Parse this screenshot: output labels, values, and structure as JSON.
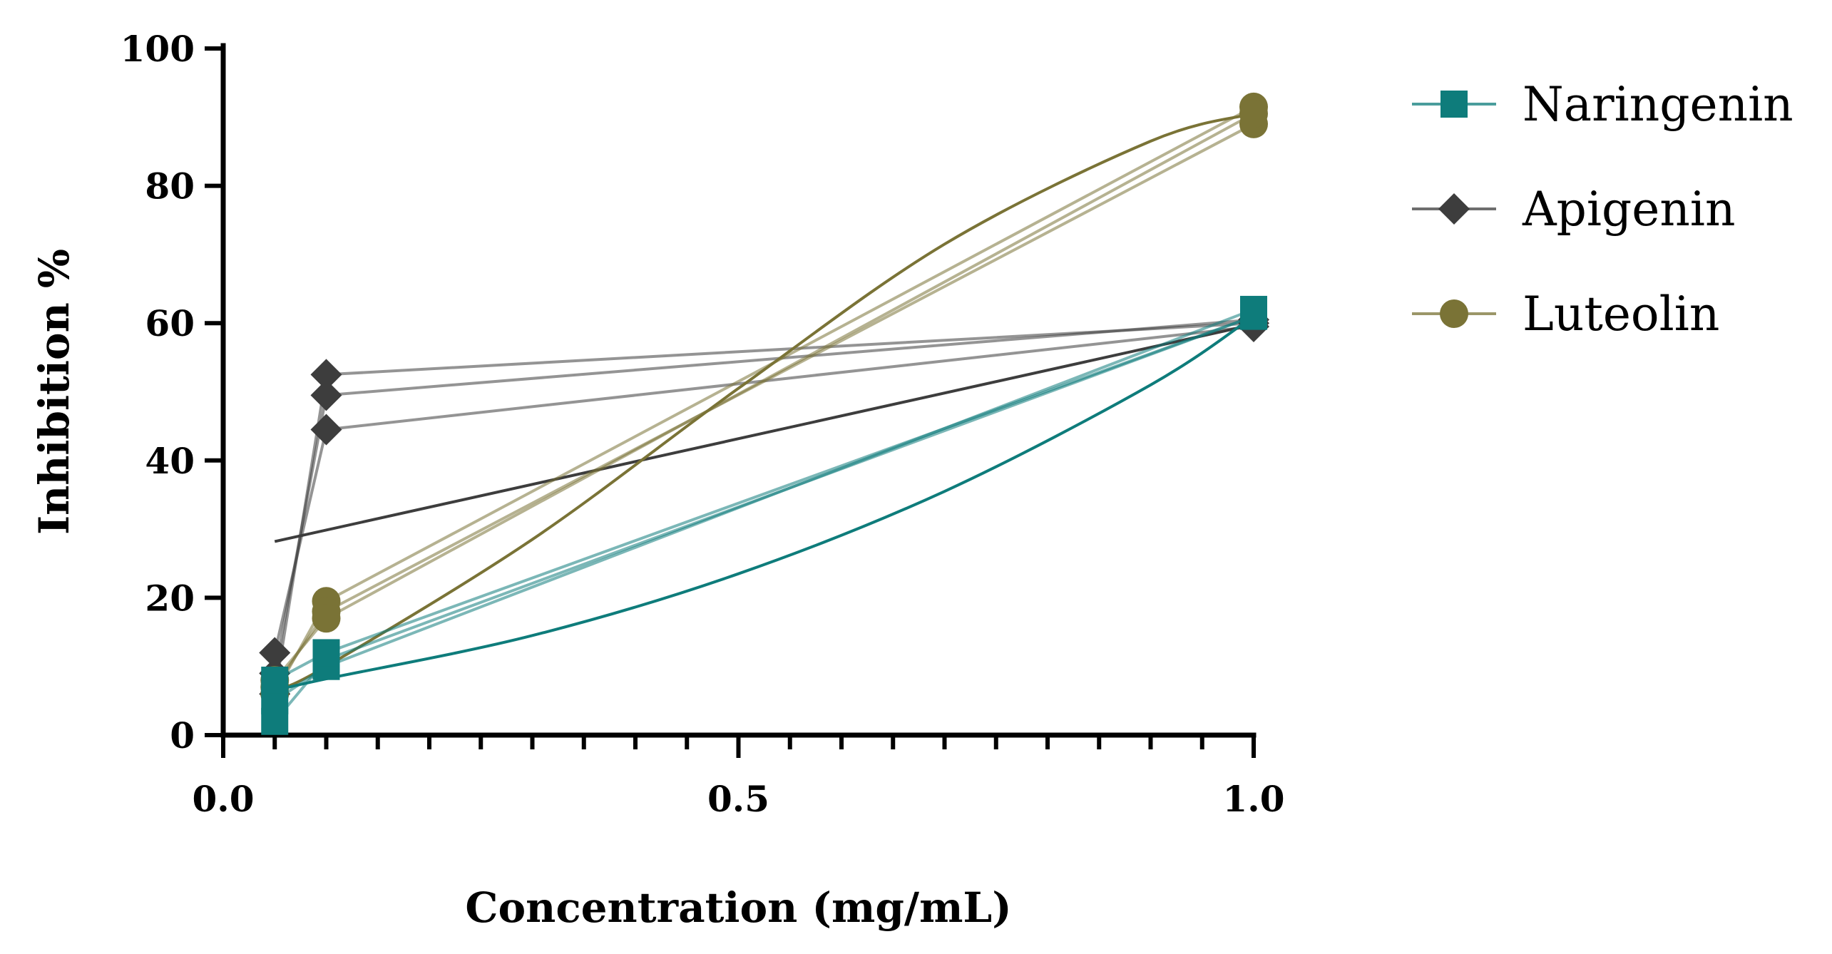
{
  "chart_data": {
    "type": "line",
    "title": "",
    "xlabel": "Concentration (mg/mL)",
    "ylabel": "Inhibition %",
    "xlim": [
      0,
      1
    ],
    "ylim": [
      0,
      100
    ],
    "x_major_ticks": [
      0,
      0.5,
      1
    ],
    "x_tick_labels": [
      "0.0",
      "0.5",
      "1.0"
    ],
    "y_ticks": [
      0,
      20,
      40,
      60,
      80,
      100
    ],
    "y_tick_labels": [
      "0",
      "20",
      "40",
      "60",
      "80",
      "100"
    ],
    "legend_position": "top-right",
    "series": [
      {
        "name": "Naringenin",
        "color": "#0E7C7B",
        "marker": "square",
        "replicates": [
          {
            "x": [
              0.05,
              0.1,
              1.0
            ],
            "y": [
              2,
              11,
              61
            ]
          },
          {
            "x": [
              0.05,
              0.1,
              1.0
            ],
            "y": [
              5,
              10,
              62
            ]
          },
          {
            "x": [
              0.05,
              0.1,
              1.0
            ],
            "y": [
              8,
              12,
              61
            ]
          }
        ],
        "fit_curve": {
          "x": [
            0.05,
            0.1,
            0.3,
            0.5,
            0.7,
            0.9,
            1.0
          ],
          "y": [
            6.5,
            8.2,
            14.5,
            23.5,
            35.5,
            51.0,
            61.0
          ]
        }
      },
      {
        "name": "Apigenin",
        "color": "#3D3D3D",
        "marker": "diamond",
        "replicates": [
          {
            "x": [
              0.05,
              0.1,
              1.0
            ],
            "y": [
              6,
              52.5,
              60
            ]
          },
          {
            "x": [
              0.05,
              0.1,
              1.0
            ],
            "y": [
              9,
              49.5,
              60.5
            ]
          },
          {
            "x": [
              0.05,
              0.1,
              1.0
            ],
            "y": [
              12,
              44.5,
              59.5
            ]
          }
        ],
        "fit_curve": {
          "x": [
            0.05,
            1.0
          ],
          "y": [
            28.2,
            59.8
          ]
        }
      },
      {
        "name": "Luteolin",
        "color": "#7A7336",
        "marker": "circle",
        "replicates": [
          {
            "x": [
              0.05,
              0.1,
              1.0
            ],
            "y": [
              6,
              19.5,
              91.5
            ]
          },
          {
            "x": [
              0.05,
              0.1,
              1.0
            ],
            "y": [
              7,
              18,
              89
            ]
          },
          {
            "x": [
              0.05,
              0.1,
              1.0
            ],
            "y": [
              8,
              17,
              90.5
            ]
          }
        ],
        "fit_curve": {
          "x": [
            0.05,
            0.1,
            0.3,
            0.5,
            0.7,
            0.9,
            1.0
          ],
          "y": [
            6.5,
            10.0,
            28.5,
            50.5,
            71.5,
            86.5,
            90.5
          ]
        }
      }
    ]
  }
}
